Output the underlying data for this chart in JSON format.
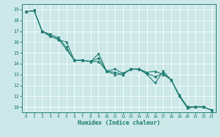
{
  "xlabel": "Humidex (Indice chaleur)",
  "bg_color": "#cce8e8",
  "grid_color": "#ffffff",
  "line_color": "#1a7a6e",
  "xlim": [
    -0.5,
    23.5
  ],
  "ylim": [
    9.5,
    19.5
  ],
  "xticks": [
    0,
    1,
    2,
    3,
    4,
    5,
    6,
    7,
    8,
    9,
    10,
    11,
    12,
    13,
    14,
    15,
    16,
    17,
    18,
    19,
    20,
    21,
    22,
    23
  ],
  "yticks": [
    10,
    11,
    12,
    13,
    14,
    15,
    16,
    17,
    18,
    19
  ],
  "line1_x": [
    0,
    1,
    2,
    3,
    4,
    5,
    6,
    7,
    8,
    9,
    10,
    11,
    12,
    13,
    14,
    15,
    16,
    17,
    18,
    19,
    20,
    21,
    22,
    23
  ],
  "line1_y": [
    18.8,
    18.9,
    17.0,
    16.7,
    16.4,
    15.5,
    14.3,
    14.3,
    14.2,
    14.9,
    13.3,
    13.5,
    13.1,
    13.5,
    13.5,
    13.0,
    12.2,
    13.3,
    12.5,
    11.1,
    10.0,
    10.0,
    10.0,
    9.7
  ],
  "line2_x": [
    0,
    1,
    2,
    3,
    4,
    5,
    6,
    7,
    8,
    9,
    10,
    11,
    12,
    13,
    14,
    15,
    16,
    17,
    18,
    19,
    20,
    21,
    22,
    23
  ],
  "line2_y": [
    18.8,
    18.9,
    17.0,
    16.6,
    16.2,
    16.0,
    14.3,
    14.3,
    14.2,
    14.2,
    13.3,
    13.0,
    13.0,
    13.5,
    13.5,
    13.2,
    13.3,
    13.0,
    12.5,
    11.0,
    10.0,
    10.0,
    10.0,
    9.7
  ],
  "line3_x": [
    0,
    1,
    2,
    3,
    4,
    5,
    6,
    7,
    8,
    9,
    10,
    11,
    12,
    13,
    14,
    15,
    16,
    17,
    18,
    19,
    20,
    21,
    22,
    23
  ],
  "line3_y": [
    18.8,
    18.9,
    17.0,
    16.5,
    16.3,
    15.3,
    14.3,
    14.3,
    14.2,
    14.5,
    13.3,
    13.2,
    13.0,
    13.5,
    13.5,
    13.1,
    12.8,
    13.1,
    12.5,
    11.0,
    9.9,
    10.0,
    10.0,
    9.7
  ]
}
